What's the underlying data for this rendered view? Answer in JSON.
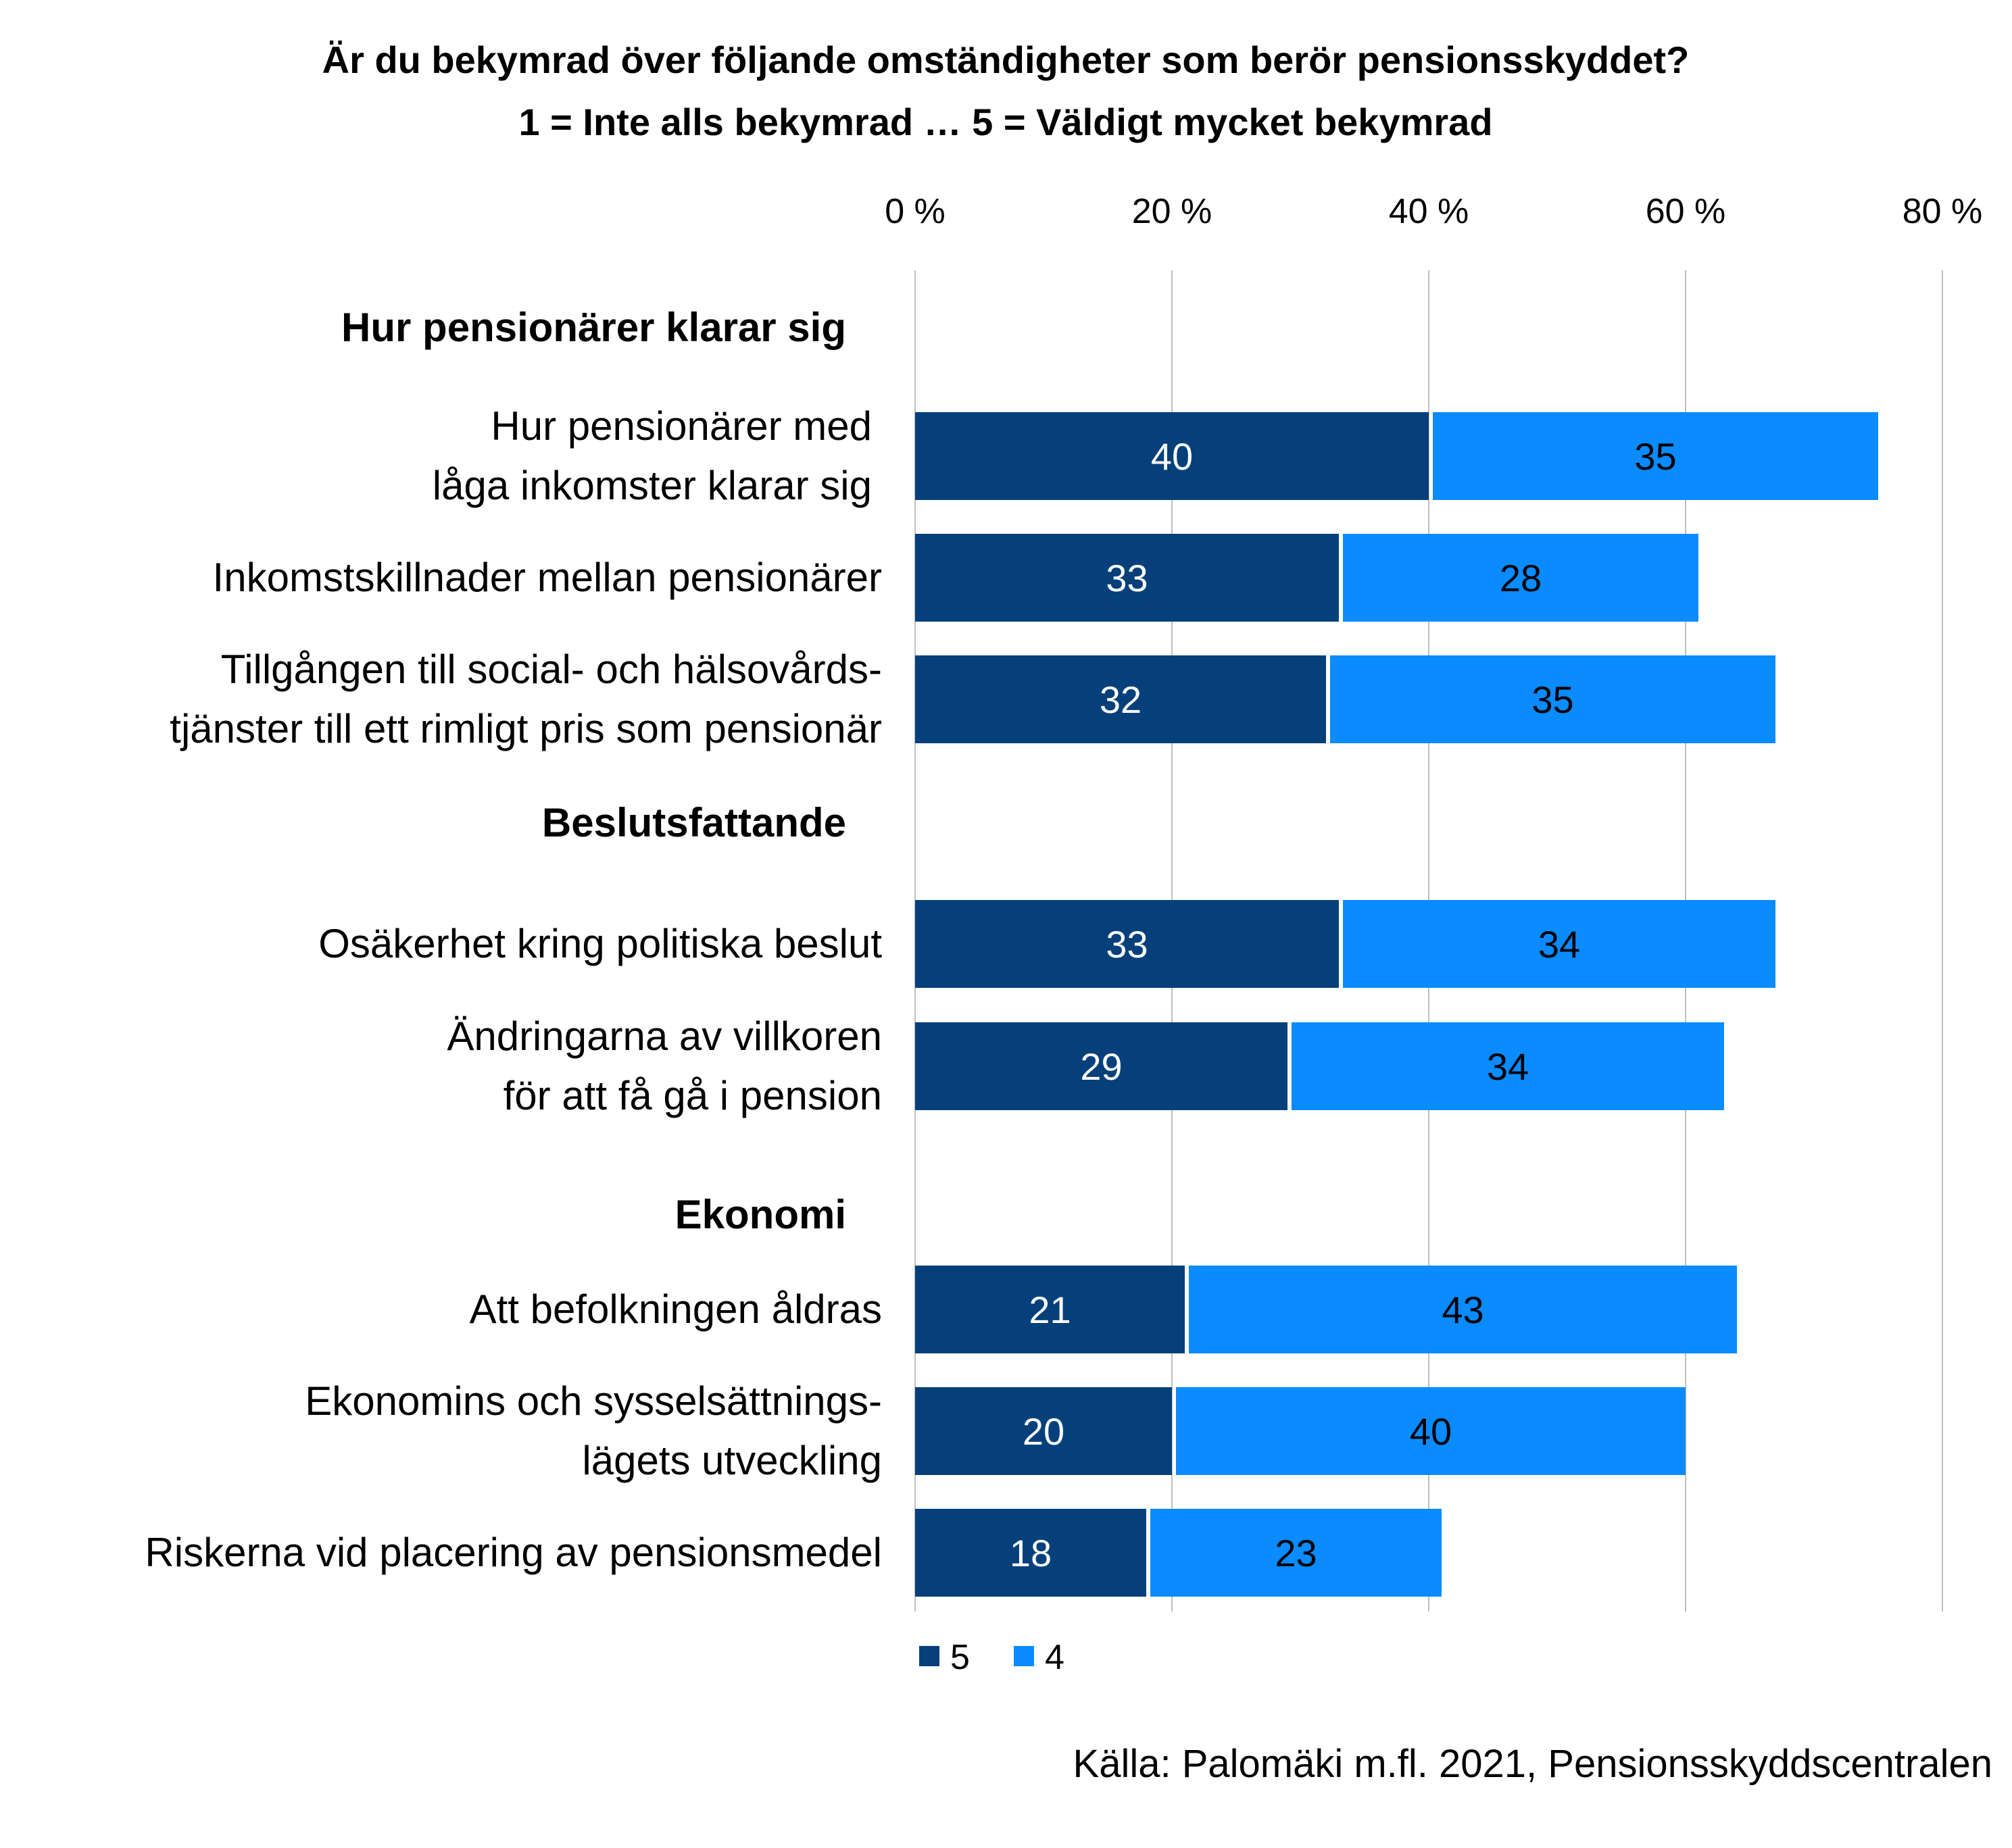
{
  "chart_data": {
    "type": "bar",
    "orientation": "horizontal",
    "stacked": true,
    "title": "Är du bekymrad över följande omständigheter som berör pensionsskyddet?",
    "subtitle": "1 = Inte alls bekymrad … 5 = Väldigt mycket bekymrad",
    "xlim": [
      0,
      80
    ],
    "x_ticks": [
      "0 %",
      "20 %",
      "40 %",
      "60 %",
      "80 %"
    ],
    "x_tick_values": [
      0,
      20,
      40,
      60,
      80
    ],
    "grid": true,
    "legend_position": "bottom-left",
    "groups": [
      {
        "label": "Hur pensionärer klarar sig",
        "items": [
          {
            "label": [
              "Hur pensionärer med",
              "låga inkomster klarar sig"
            ],
            "values": [
              40,
              35
            ]
          },
          {
            "label": [
              "Inkomstskillnader mellan pensionärer"
            ],
            "values": [
              33,
              28
            ]
          },
          {
            "label": [
              "Tillgången till social- och hälsovårds-",
              "tjänster till ett rimligt pris som pensionär"
            ],
            "values": [
              32,
              35
            ]
          }
        ]
      },
      {
        "label": "Beslutsfattande",
        "items": [
          {
            "label": [
              "Osäkerhet kring politiska beslut"
            ],
            "values": [
              33,
              34
            ]
          },
          {
            "label": [
              "Ändringarna av villkoren",
              "för att få gå i pension"
            ],
            "values": [
              29,
              34
            ]
          }
        ]
      },
      {
        "label": "Ekonomi",
        "items": [
          {
            "label": [
              "Att befolkningen åldras"
            ],
            "values": [
              21,
              43
            ]
          },
          {
            "label": [
              "Ekonomins och sysselsättnings-",
              "lägets utveckling"
            ],
            "values": [
              20,
              40
            ]
          },
          {
            "label": [
              "Riskerna vid placering av pensionsmedel"
            ],
            "values": [
              18,
              23
            ]
          }
        ]
      }
    ],
    "series": [
      {
        "name": "5",
        "color": "#05407a",
        "label_color": "#ffffff"
      },
      {
        "name": "4",
        "color": "#0a8bff",
        "label_color": "#000000"
      }
    ],
    "source": "Källa: Palomäki m.fl. 2021, Pensionsskyddscentralen"
  }
}
